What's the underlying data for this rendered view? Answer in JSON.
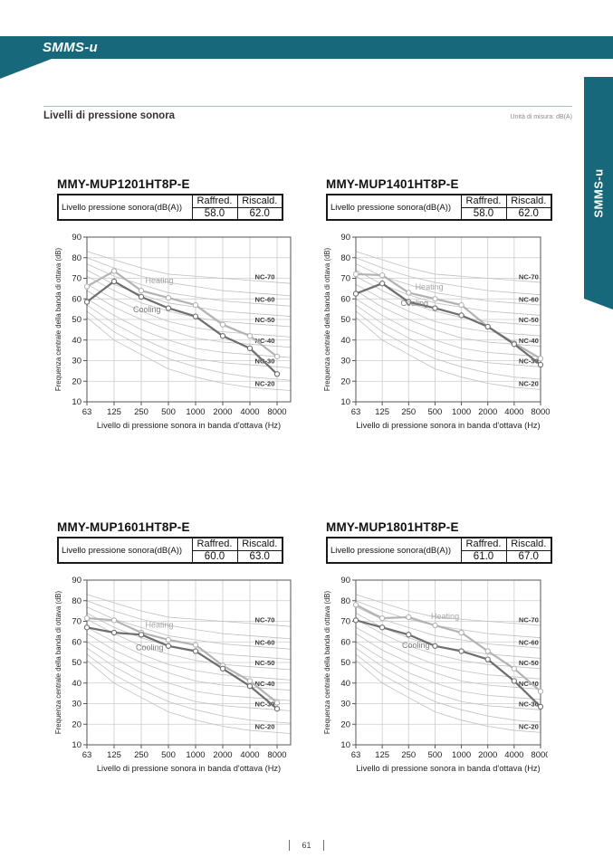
{
  "header": {
    "brand": "SMMS-u"
  },
  "side_tab": {
    "label": "SMMS-u"
  },
  "section": {
    "title": "Livelli di pressione sonora",
    "unit_note": "Unità di misura: dB(A)"
  },
  "footer": {
    "page_number": "61"
  },
  "table": {
    "row_label": "Livello pressione sonora(dB(A))",
    "col_raffred": "Raffred.",
    "col_riscald": "Riscald."
  },
  "models": [
    {
      "name": "MMY-MUP1201HT8P-E",
      "raffred": "58.0",
      "riscald": "62.0"
    },
    {
      "name": "MMY-MUP1401HT8P-E",
      "raffred": "58.0",
      "riscald": "62.0"
    },
    {
      "name": "MMY-MUP1601HT8P-E",
      "raffred": "60.0",
      "riscald": "63.0"
    },
    {
      "name": "MMY-MUP1801HT8P-E",
      "raffred": "61.0",
      "riscald": "67.0"
    }
  ],
  "colors": {
    "teal": "#17687a",
    "footer_bar": "#b2574f",
    "heating_line": "#b3b3b3",
    "cooling_line": "#6e6e6e",
    "heating_label": "#a6a6a6",
    "cooling_label": "#7d7d7d",
    "nc_curve": "#c0c0c0",
    "grid": "#cccccc",
    "axis": "#555555",
    "tick_text": "#222222",
    "nc_text": "#3c3c3c"
  },
  "chart_common": {
    "type": "line",
    "x_categories": [
      63,
      125,
      250,
      500,
      1000,
      2000,
      4000,
      8000
    ],
    "xlabel": "Livello di pressione sonora in banda d'ottava (Hz)",
    "ylabel": "Frequenza centrale della banda di ottava (dB)",
    "ylim": [
      10,
      90
    ],
    "y_ticks": [
      10,
      20,
      30,
      40,
      50,
      60,
      70,
      80,
      90
    ],
    "grid": true,
    "legend_labels": {
      "heating": "Heating",
      "cooling": "Cooling"
    },
    "nc_curves": [
      {
        "name": "NC-70",
        "values": [
          83,
          79,
          75,
          72,
          71,
          70,
          69,
          68
        ],
        "labeled": true
      },
      {
        "name": "NC-65",
        "values": [
          80,
          75,
          71,
          68,
          66,
          64,
          63,
          62
        ],
        "labeled": false
      },
      {
        "name": "NC-60",
        "values": [
          77,
          71,
          67,
          63,
          61,
          59,
          58,
          57
        ],
        "labeled": true
      },
      {
        "name": "NC-55",
        "values": [
          74,
          67,
          62,
          58,
          56,
          54,
          53,
          52
        ],
        "labeled": false
      },
      {
        "name": "NC-50",
        "values": [
          71,
          64,
          58,
          54,
          51,
          49,
          48,
          47
        ],
        "labeled": true
      },
      {
        "name": "NC-45",
        "values": [
          67,
          60,
          54,
          49,
          46,
          44,
          43,
          42
        ],
        "labeled": false
      },
      {
        "name": "NC-40",
        "values": [
          64,
          56,
          50,
          45,
          41,
          39,
          38,
          37
        ],
        "labeled": true
      },
      {
        "name": "NC-35",
        "values": [
          60,
          52,
          45,
          40,
          36,
          34,
          33,
          32
        ],
        "labeled": false
      },
      {
        "name": "NC-30",
        "values": [
          57,
          48,
          41,
          35,
          31,
          29,
          28,
          27
        ],
        "labeled": true
      },
      {
        "name": "NC-25",
        "values": [
          54,
          44,
          37,
          31,
          27,
          24,
          22,
          21
        ],
        "labeled": false
      },
      {
        "name": "NC-20",
        "values": [
          51,
          40,
          33,
          26,
          22,
          19,
          17,
          16
        ],
        "labeled": true
      }
    ]
  },
  "chart_data": [
    {
      "model": "MMY-MUP1201HT8P-E",
      "type": "line",
      "x": [
        63,
        125,
        250,
        500,
        1000,
        2000,
        4000,
        8000
      ],
      "series": [
        {
          "name": "Heating",
          "values": [
            66,
            73.5,
            64,
            60.5,
            57,
            47.5,
            42,
            32
          ]
        },
        {
          "name": "Cooling",
          "values": [
            58.5,
            68.5,
            61,
            55.5,
            51.5,
            42,
            36,
            23.5
          ]
        }
      ],
      "label_pos": {
        "heating": [
          2.15,
          67.5
        ],
        "cooling": [
          1.7,
          53.5
        ]
      }
    },
    {
      "model": "MMY-MUP1401HT8P-E",
      "type": "line",
      "x": [
        63,
        125,
        250,
        500,
        1000,
        2000,
        4000,
        8000
      ],
      "series": [
        {
          "name": "Heating",
          "values": [
            72,
            71.5,
            63,
            60,
            57,
            46.5,
            38.5,
            31
          ]
        },
        {
          "name": "Cooling",
          "values": [
            62.5,
            67.5,
            58.5,
            55.5,
            52,
            46.5,
            38,
            28
          ]
        }
      ],
      "label_pos": {
        "heating": [
          2.25,
          64.5
        ],
        "cooling": [
          1.7,
          56.5
        ]
      }
    },
    {
      "model": "MMY-MUP1601HT8P-E",
      "type": "line",
      "x": [
        63,
        125,
        250,
        500,
        1000,
        2000,
        4000,
        8000
      ],
      "series": [
        {
          "name": "Heating",
          "values": [
            71.5,
            70.5,
            64.5,
            61,
            58.5,
            48.5,
            41,
            30.5
          ]
        },
        {
          "name": "Cooling",
          "values": [
            67,
            64.5,
            63.5,
            58,
            55.5,
            47,
            38.5,
            27.5
          ]
        }
      ],
      "label_pos": {
        "heating": [
          2.15,
          67
        ],
        "cooling": [
          1.8,
          56
        ]
      }
    },
    {
      "model": "MMY-MUP1801HT8P-E",
      "type": "line",
      "x": [
        63,
        125,
        250,
        500,
        1000,
        2000,
        4000,
        8000
      ],
      "series": [
        {
          "name": "Heating",
          "values": [
            78,
            71.5,
            72,
            68,
            64.5,
            55.5,
            47,
            36
          ]
        },
        {
          "name": "Cooling",
          "values": [
            70.5,
            67,
            63.5,
            58,
            55.5,
            51.5,
            41,
            28.5
          ]
        }
      ],
      "label_pos": {
        "heating": [
          2.85,
          71
        ],
        "cooling": [
          1.75,
          57
        ]
      }
    }
  ]
}
